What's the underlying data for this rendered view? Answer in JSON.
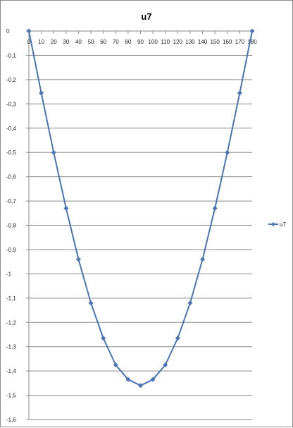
{
  "chart_data": {
    "type": "line",
    "title": "u7",
    "xlabel": "",
    "ylabel": "",
    "x": [
      0,
      10,
      20,
      30,
      40,
      50,
      60,
      70,
      80,
      90,
      100,
      110,
      120,
      130,
      140,
      150,
      160,
      170,
      180
    ],
    "x_tick_labels": [
      "0",
      "10",
      "20",
      "30",
      "40",
      "50",
      "60",
      "70",
      "80",
      "90",
      "100",
      "110",
      "120",
      "130",
      "140",
      "150",
      "160",
      "170",
      "180"
    ],
    "y_tick_values": [
      0,
      -0.1,
      -0.2,
      -0.3,
      -0.4,
      -0.5,
      -0.6,
      -0.7,
      -0.8,
      -0.9,
      -1,
      -1.1,
      -1.2,
      -1.3,
      -1.4,
      -1.5,
      -1.6
    ],
    "y_tick_labels": [
      "0",
      "-0,1",
      "-0,2",
      "-0,3",
      "-0,4",
      "-0,5",
      "-0,6",
      "-0,7",
      "-0,8",
      "-0,9",
      "-1",
      "-1,1",
      "-1,2",
      "-1,3",
      "-1,4",
      "-1,5",
      "-1,6"
    ],
    "ylim": [
      -1.6,
      0
    ],
    "xlim": [
      0,
      180
    ],
    "grid": true,
    "legend_position": "right",
    "series": [
      {
        "name": "u7",
        "color": "#4a74b4",
        "values": [
          0,
          -0.255,
          -0.5,
          -0.73,
          -0.94,
          -1.12,
          -1.265,
          -1.375,
          -1.435,
          -1.46,
          -1.435,
          -1.375,
          -1.265,
          -1.12,
          -0.94,
          -0.73,
          -0.5,
          -0.255,
          0
        ]
      }
    ]
  }
}
